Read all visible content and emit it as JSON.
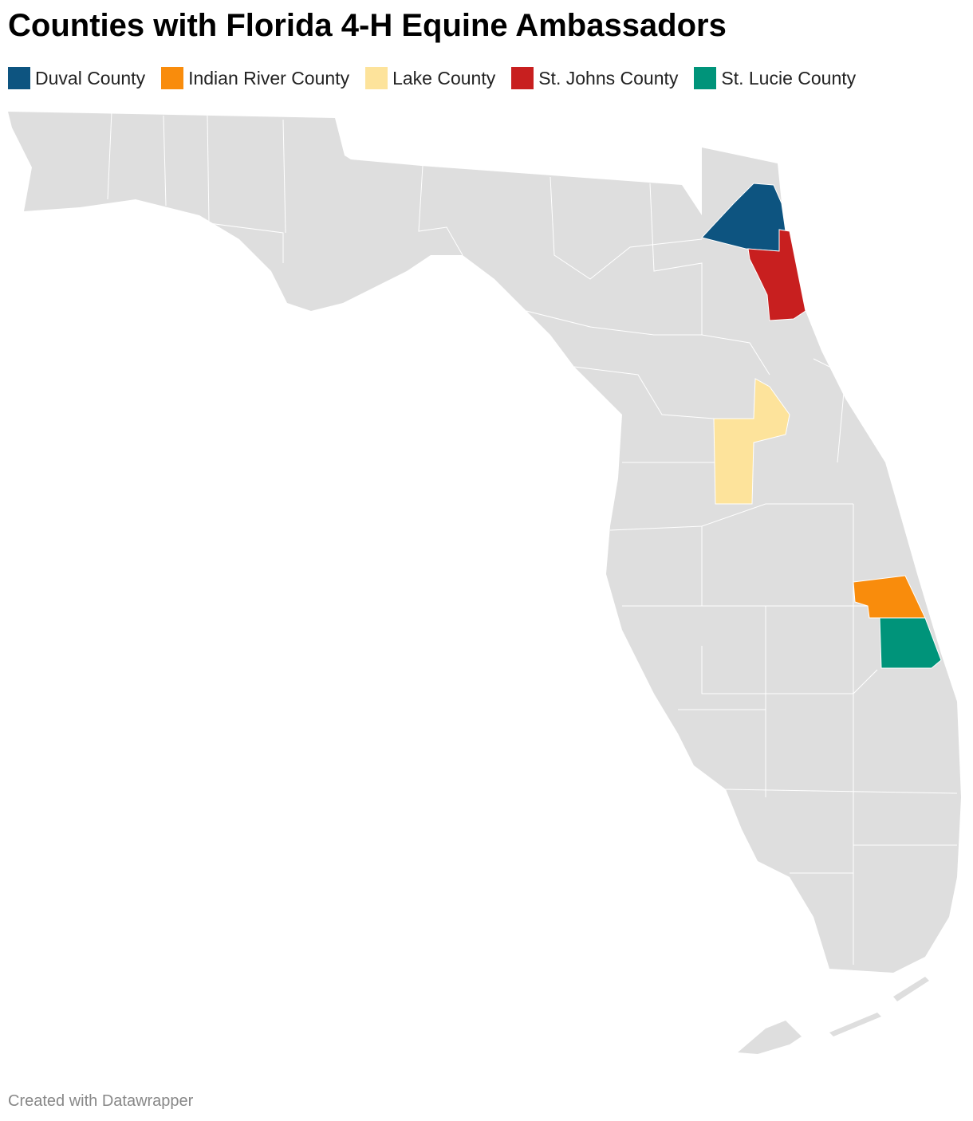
{
  "title": "Counties with Florida 4-H Equine Ambassadors",
  "legend": [
    {
      "label": "Duval County",
      "color": "#0d5480"
    },
    {
      "label": "Indian River County",
      "color": "#f98c0c"
    },
    {
      "label": "Lake County",
      "color": "#fde39b"
    },
    {
      "label": "St. Johns County",
      "color": "#c81f1f"
    },
    {
      "label": "St. Lucie County",
      "color": "#00947a"
    }
  ],
  "footer": "Created with Datawrapper"
}
